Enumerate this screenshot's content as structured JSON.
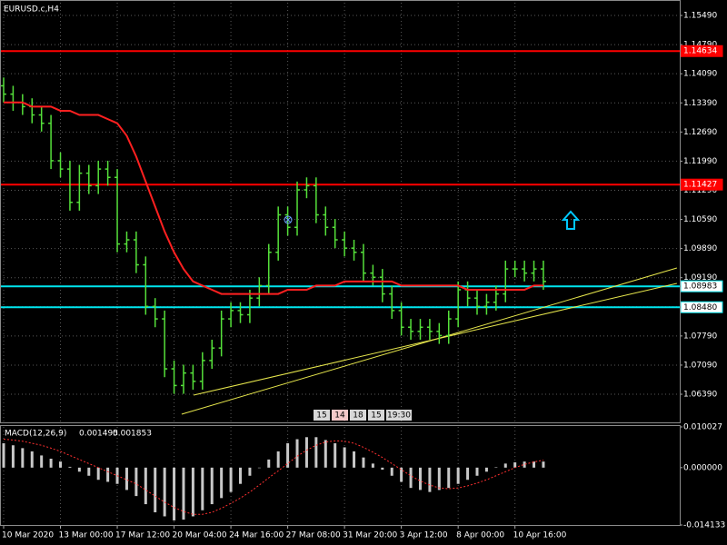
{
  "chart_data": [
    {
      "type": "ohlc",
      "title": "EURUSD.c,H4",
      "color": "#55e03a",
      "background": "#000000",
      "grid": true,
      "categories": [
        "10 Mar 2020",
        null,
        null,
        null,
        null,
        null,
        "13 Mar 00:00",
        null,
        null,
        null,
        null,
        null,
        "17 Mar 12:00",
        null,
        null,
        null,
        null,
        null,
        "20 Mar 04:00",
        null,
        null,
        null,
        null,
        null,
        "24 Mar 16:00",
        null,
        null,
        null,
        null,
        null,
        "27 Mar 08:00",
        null,
        null,
        null,
        null,
        null,
        "31 Mar 20:00",
        null,
        null,
        null,
        null,
        null,
        "3 Apr 12:00",
        null,
        null,
        null,
        null,
        null,
        "8 Apr 00:00",
        null,
        null,
        null,
        null,
        null,
        "10 Apr 16:00",
        null,
        null,
        null
      ],
      "open": [
        1.138,
        1.136,
        1.134,
        1.133,
        1.131,
        1.129,
        1.12,
        1.118,
        1.11,
        1.117,
        1.114,
        1.118,
        1.116,
        1.1,
        1.101,
        1.095,
        1.085,
        1.082,
        1.07,
        1.066,
        1.069,
        1.067,
        1.072,
        1.075,
        1.082,
        1.084,
        1.083,
        1.087,
        1.09,
        1.098,
        1.107,
        1.104,
        1.113,
        1.114,
        1.107,
        1.104,
        1.101,
        1.099,
        1.098,
        1.093,
        1.092,
        1.088,
        1.084,
        1.08,
        1.079,
        1.08,
        1.079,
        1.078,
        1.082,
        1.089,
        1.087,
        1.085,
        1.086,
        1.088,
        1.094,
        1.094,
        1.093,
        1.094
      ],
      "high": [
        1.14,
        1.138,
        1.136,
        1.135,
        1.133,
        1.131,
        1.122,
        1.12,
        1.119,
        1.119,
        1.12,
        1.12,
        1.118,
        1.103,
        1.103,
        1.097,
        1.087,
        1.084,
        1.072,
        1.071,
        1.071,
        1.074,
        1.077,
        1.084,
        1.086,
        1.086,
        1.089,
        1.092,
        1.1,
        1.109,
        1.109,
        1.115,
        1.116,
        1.116,
        1.109,
        1.106,
        1.103,
        1.101,
        1.1,
        1.095,
        1.094,
        1.09,
        1.086,
        1.082,
        1.082,
        1.082,
        1.081,
        1.084,
        1.091,
        1.091,
        1.089,
        1.088,
        1.09,
        1.096,
        1.096,
        1.096,
        1.096,
        1.096
      ],
      "low": [
        1.134,
        1.132,
        1.131,
        1.129,
        1.127,
        1.118,
        1.116,
        1.108,
        1.108,
        1.112,
        1.112,
        1.114,
        1.098,
        1.098,
        1.093,
        1.083,
        1.08,
        1.068,
        1.064,
        1.064,
        1.065,
        1.065,
        1.07,
        1.073,
        1.08,
        1.081,
        1.081,
        1.085,
        1.088,
        1.096,
        1.102,
        1.102,
        1.111,
        1.105,
        1.102,
        1.099,
        1.097,
        1.096,
        1.091,
        1.09,
        1.086,
        1.082,
        1.078,
        1.077,
        1.077,
        1.077,
        1.076,
        1.076,
        1.08,
        1.085,
        1.083,
        1.083,
        1.084,
        1.086,
        1.092,
        1.091,
        1.091,
        1.089
      ],
      "close": [
        1.136,
        1.134,
        1.133,
        1.131,
        1.129,
        1.12,
        1.118,
        1.11,
        1.117,
        1.114,
        1.118,
        1.116,
        1.1,
        1.101,
        1.095,
        1.085,
        1.082,
        1.07,
        1.066,
        1.069,
        1.067,
        1.072,
        1.075,
        1.082,
        1.084,
        1.083,
        1.087,
        1.09,
        1.098,
        1.107,
        1.104,
        1.113,
        1.114,
        1.107,
        1.104,
        1.101,
        1.099,
        1.098,
        1.093,
        1.092,
        1.088,
        1.084,
        1.08,
        1.079,
        1.08,
        1.079,
        1.078,
        1.082,
        1.089,
        1.087,
        1.085,
        1.086,
        1.088,
        1.094,
        1.094,
        1.093,
        1.094,
        1.091
      ],
      "lines": [
        {
          "color": "#ff2020",
          "values": [
            1.134,
            1.134,
            1.134,
            1.133,
            1.133,
            1.133,
            1.132,
            1.132,
            1.131,
            1.131,
            1.131,
            1.13,
            1.129,
            1.126,
            1.121,
            1.115,
            1.109,
            1.103,
            1.098,
            1.094,
            1.091,
            1.09,
            1.089,
            1.088,
            1.088,
            1.088,
            1.088,
            1.088,
            1.088,
            1.088,
            1.089,
            1.089,
            1.089,
            1.09,
            1.09,
            1.09,
            1.091,
            1.091,
            1.091,
            1.091,
            1.091,
            1.091,
            1.09,
            1.09,
            1.09,
            1.09,
            1.09,
            1.09,
            1.09,
            1.089,
            1.089,
            1.089,
            1.089,
            1.089,
            1.089,
            1.089,
            1.09,
            1.09
          ]
        }
      ],
      "levels": [
        {
          "value": 1.14634,
          "color": "#ff0000"
        },
        {
          "value": 1.11427,
          "color": "#ff0000"
        },
        {
          "value": 1.08983,
          "color": "#00e5ee"
        },
        {
          "value": 1.0848,
          "label": "1.08480",
          "color": "#00e5ee"
        }
      ],
      "trendlines": [
        {
          "x": [
            18.8,
            71.1
          ],
          "y": [
            1.0591,
            1.09424
          ],
          "color": "#e6e64c"
        },
        {
          "x": [
            20.06,
            71.1
          ],
          "y": [
            1.06368,
            1.09053
          ],
          "color": "#e6e64c"
        }
      ],
      "time_marks": [
        "15",
        "14",
        "18",
        "15",
        "19:30"
      ],
      "ylim": [
        1.05714,
        1.15796
      ],
      "yticks": [
        {
          "value": 1.1549,
          "label": "1.15490"
        },
        {
          "value": 1.1479,
          "label": "1.14790"
        },
        {
          "value": 1.1409,
          "label": "1.14090"
        },
        {
          "value": 1.1339,
          "label": "1.13390"
        },
        {
          "value": 1.1269,
          "label": "1.12690"
        },
        {
          "value": 1.1199,
          "label": "1.11990"
        },
        {
          "value": 1.1129,
          "label": "1.11290"
        },
        {
          "value": 1.1059,
          "label": "1.10590"
        },
        {
          "value": 1.0989,
          "label": "1.09890"
        },
        {
          "value": 1.0919,
          "label": "1.09190"
        },
        {
          "value": 1.0849,
          "label": "1.08490"
        },
        {
          "value": 1.0779,
          "label": "1.07790"
        },
        {
          "value": 1.0709,
          "label": "1.07090"
        },
        {
          "value": 1.0639,
          "label": "1.06390"
        }
      ]
    },
    {
      "type": "macd",
      "title": "MACD(12,26,9)",
      "series": [
        {
          "color": "#c8c8c8",
          "values": [
            0.006,
            0.0055,
            0.0048,
            0.004,
            0.003,
            0.0022,
            0.0015,
            0.0002,
            -0.001,
            -0.002,
            -0.003,
            -0.0035,
            -0.004,
            -0.0055,
            -0.007,
            -0.009,
            -0.011,
            -0.012,
            -0.013,
            -0.0128,
            -0.012,
            -0.0105,
            -0.009,
            -0.0075,
            -0.006,
            -0.004,
            -0.002,
            0,
            0.002,
            0.004,
            0.006,
            0.007,
            0.0075,
            0.0075,
            0.0068,
            0.006,
            0.005,
            0.004,
            0.0025,
            0.001,
            -0.0005,
            -0.002,
            -0.0035,
            -0.005,
            -0.0055,
            -0.006,
            -0.0055,
            -0.005,
            -0.004,
            -0.003,
            -0.002,
            -0.001,
            0.0001,
            0.001,
            0.0013,
            0.0015,
            0.0015,
            0.001495
          ]
        },
        {
          "color": "#ff3030",
          "values": [
            0.007,
            0.0068,
            0.0065,
            0.006,
            0.0055,
            0.0048,
            0.004,
            0.003,
            0.002,
            0.001,
            0,
            -0.001,
            -0.002,
            -0.003,
            -0.004,
            -0.0055,
            -0.007,
            -0.0085,
            -0.0098,
            -0.0108,
            -0.0115,
            -0.0115,
            -0.011,
            -0.01,
            -0.0088,
            -0.0075,
            -0.006,
            -0.0043,
            -0.0025,
            -0.0008,
            0.001,
            0.0028,
            0.0043,
            0.0055,
            0.0063,
            0.0066,
            0.0065,
            0.006,
            0.005,
            0.0038,
            0.0025,
            0.001,
            -0.0005,
            -0.002,
            -0.0033,
            -0.0043,
            -0.005,
            -0.0052,
            -0.005,
            -0.0045,
            -0.0038,
            -0.003,
            -0.002,
            -0.001,
            0,
            0.0008,
            0.0014,
            0.001853
          ]
        }
      ],
      "ylim": [
        -0.014133,
        0.010027
      ],
      "yticks": [
        0.010027,
        {
          "value": 0,
          "label": "0.000000"
        },
        -0.014133
      ]
    }
  ]
}
